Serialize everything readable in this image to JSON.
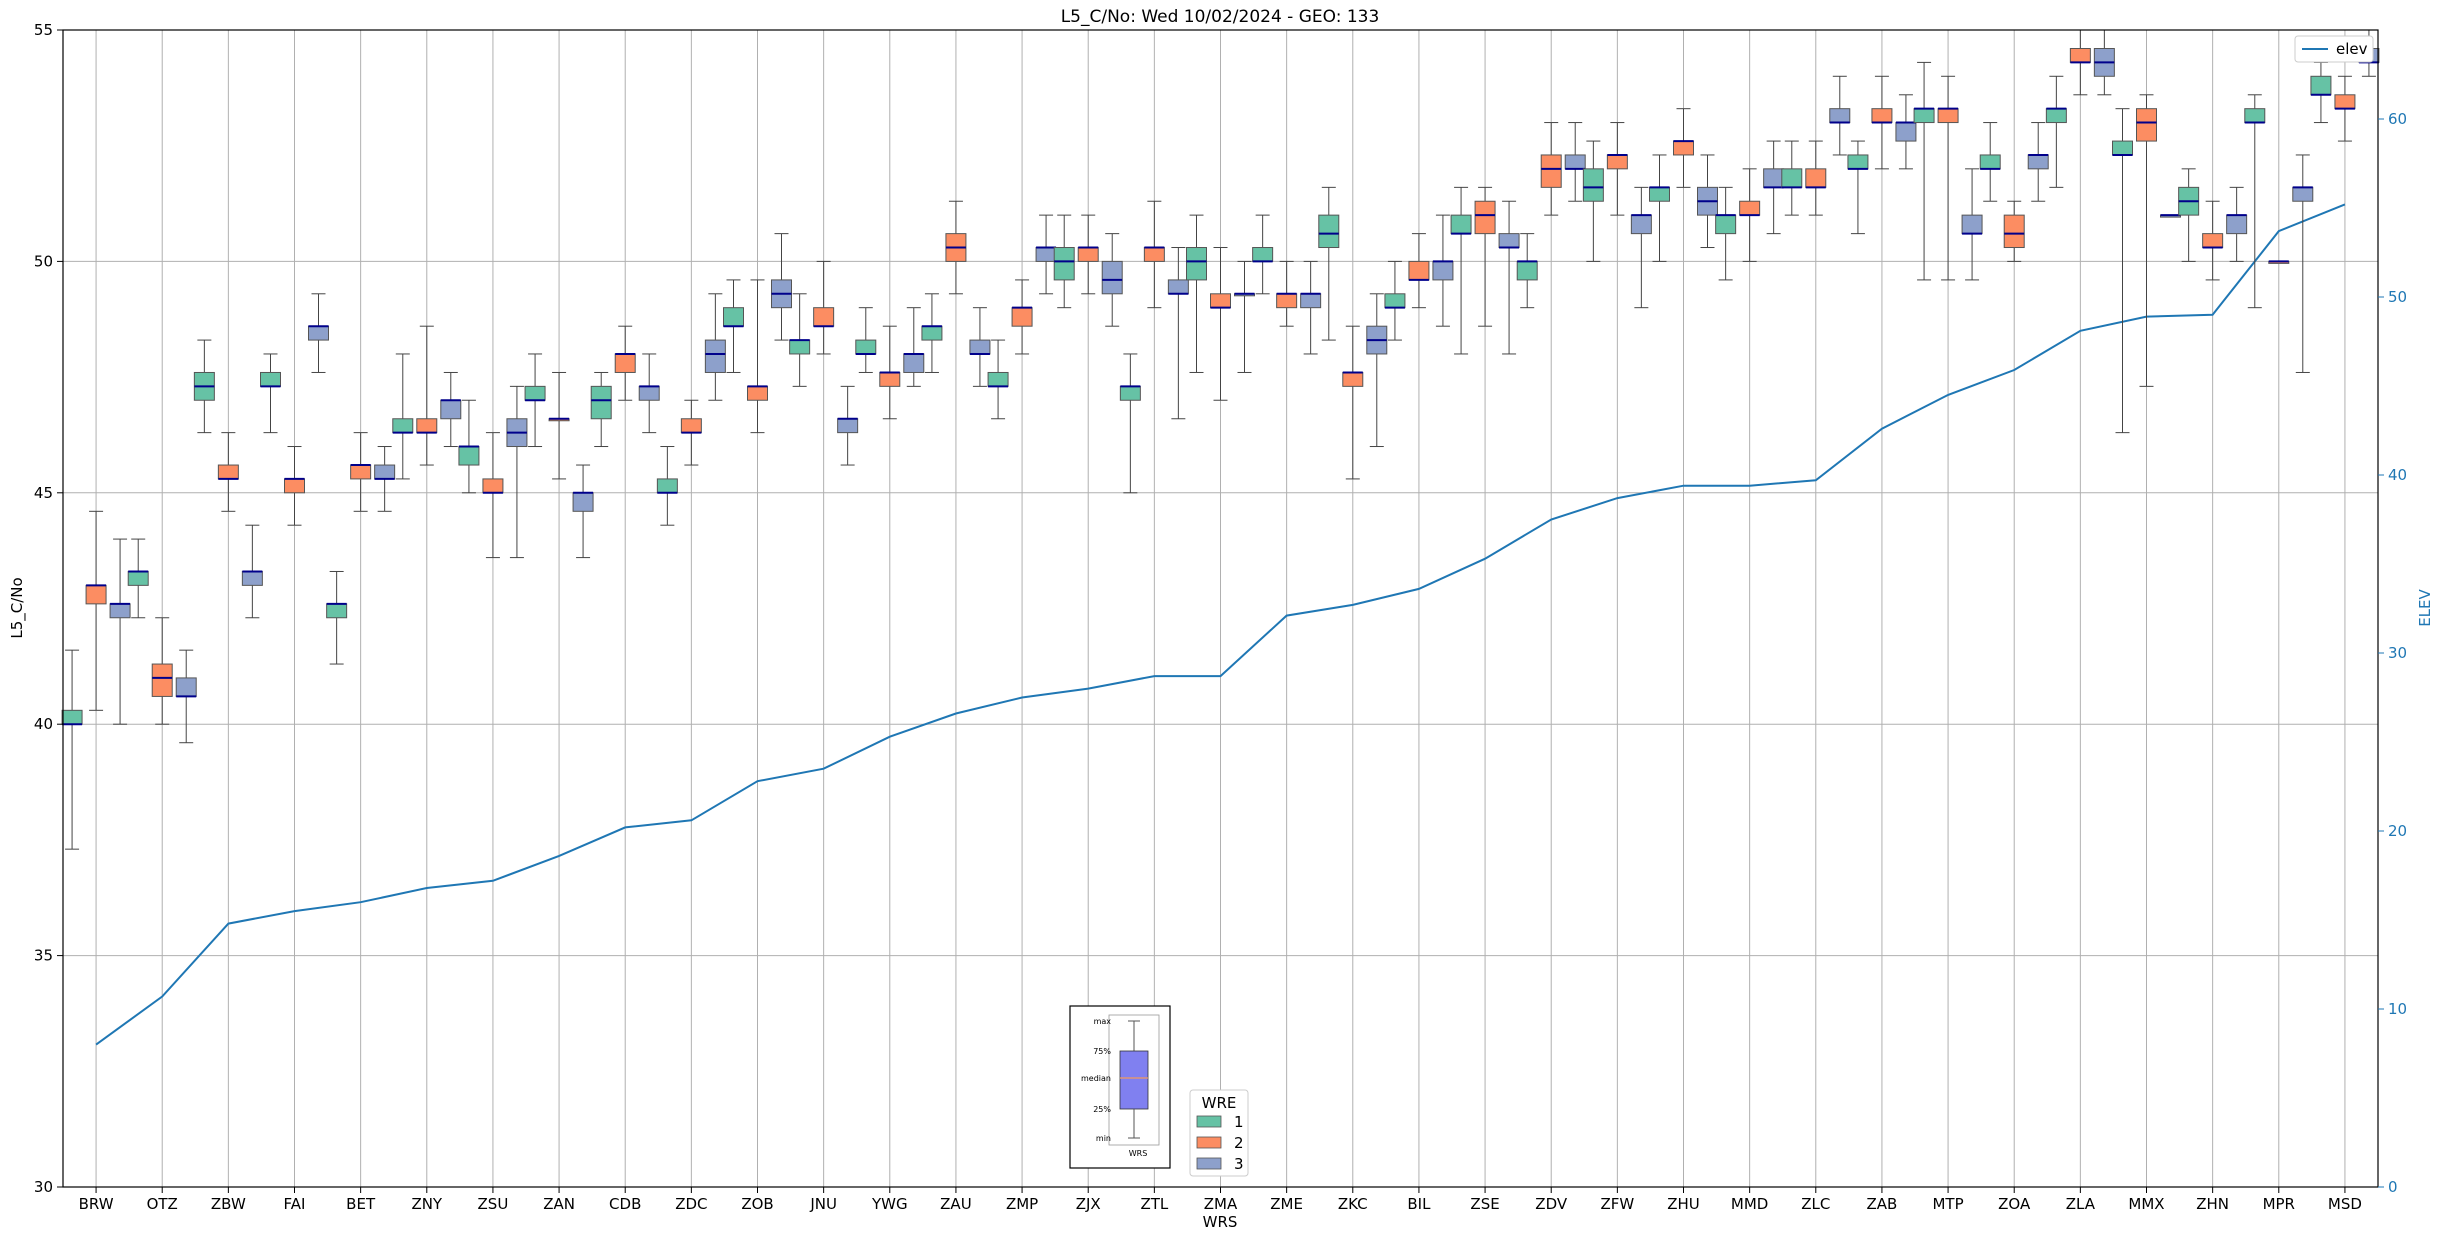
{
  "chart_data": {
    "type": "box",
    "title": "L5_C/No: Wed 10/02/2024 - GEO: 133",
    "xlabel": "WRS",
    "ylabel": "L5_C/No",
    "y2label": "ELEV",
    "ylim": [
      30,
      55
    ],
    "y2lim": [
      0,
      65
    ],
    "yticks": [
      30,
      35,
      40,
      45,
      50,
      55
    ],
    "y2ticks": [
      0,
      10,
      20,
      30,
      40,
      50,
      60
    ],
    "grid": true,
    "categories": [
      "BRW",
      "OTZ",
      "ZBW",
      "FAI",
      "BET",
      "ZNY",
      "ZSU",
      "ZAN",
      "CDB",
      "ZDC",
      "ZOB",
      "JNU",
      "YWG",
      "ZAU",
      "ZMP",
      "ZJX",
      "ZTL",
      "ZMA",
      "ZME",
      "ZKC",
      "BIL",
      "ZSE",
      "ZDV",
      "ZFW",
      "ZHU",
      "MMD",
      "ZLC",
      "ZAB",
      "MTP",
      "ZOA",
      "ZLA",
      "MMX",
      "ZHN",
      "MPR",
      "MSD"
    ],
    "wre_legend": {
      "title": "WRE",
      "entries": [
        {
          "name": "1",
          "color": "#66c2a5"
        },
        {
          "name": "2",
          "color": "#fc8d62"
        },
        {
          "name": "3",
          "color": "#8da0cb"
        }
      ],
      "location": "lower-center"
    },
    "elev_legend": {
      "entries": [
        {
          "name": "elev",
          "color": "#1f77b4"
        }
      ],
      "location": "upper-right"
    },
    "box_key": {
      "labels": [
        "max",
        "75%",
        "median",
        "25%",
        "min"
      ],
      "xlabel": "WRS",
      "location": "lower-center"
    },
    "boxes": [
      [
        {
          "w": 1,
          "min": 37.3,
          "q1": 40.0,
          "med": 40.0,
          "q3": 40.3,
          "max": 41.6
        },
        {
          "w": 2,
          "min": 40.3,
          "q1": 42.6,
          "med": 43.0,
          "q3": 43.0,
          "max": 44.6
        },
        {
          "w": 3,
          "min": 40.0,
          "q1": 42.3,
          "med": 42.6,
          "q3": 42.6,
          "max": 44.0
        }
      ],
      [
        {
          "w": 1,
          "min": 42.3,
          "q1": 43.0,
          "med": 43.3,
          "q3": 43.3,
          "max": 44.0
        },
        {
          "w": 2,
          "min": 40.0,
          "q1": 40.6,
          "med": 41.0,
          "q3": 41.3,
          "max": 42.3
        },
        {
          "w": 3,
          "min": 39.6,
          "q1": 40.6,
          "med": 40.6,
          "q3": 41.0,
          "max": 41.6
        }
      ],
      [
        {
          "w": 1,
          "min": 46.3,
          "q1": 47.0,
          "med": 47.3,
          "q3": 47.6,
          "max": 48.3
        },
        {
          "w": 2,
          "min": 44.6,
          "q1": 45.3,
          "med": 45.3,
          "q3": 45.6,
          "max": 46.3
        },
        {
          "w": 3,
          "min": 42.3,
          "q1": 43.0,
          "med": 43.3,
          "q3": 43.3,
          "max": 44.3
        }
      ],
      [
        {
          "w": 1,
          "min": 46.3,
          "q1": 47.3,
          "med": 47.3,
          "q3": 47.6,
          "max": 48.0
        },
        {
          "w": 2,
          "min": 44.3,
          "q1": 45.0,
          "med": 45.3,
          "q3": 45.3,
          "max": 46.0
        },
        {
          "w": 3,
          "min": 47.6,
          "q1": 48.3,
          "med": 48.6,
          "q3": 48.6,
          "max": 49.3
        }
      ],
      [
        {
          "w": 1,
          "min": 41.3,
          "q1": 42.3,
          "med": 42.6,
          "q3": 42.6,
          "max": 43.3
        },
        {
          "w": 2,
          "min": 44.6,
          "q1": 45.3,
          "med": 45.6,
          "q3": 45.6,
          "max": 46.3
        },
        {
          "w": 3,
          "min": 44.6,
          "q1": 45.3,
          "med": 45.3,
          "q3": 45.6,
          "max": 46.0
        }
      ],
      [
        {
          "w": 1,
          "min": 45.3,
          "q1": 46.3,
          "med": 46.3,
          "q3": 46.6,
          "max": 48.0
        },
        {
          "w": 2,
          "min": 45.6,
          "q1": 46.3,
          "med": 46.3,
          "q3": 46.6,
          "max": 48.6
        },
        {
          "w": 3,
          "min": 46.0,
          "q1": 46.6,
          "med": 47.0,
          "q3": 47.0,
          "max": 47.6
        }
      ],
      [
        {
          "w": 1,
          "min": 45.0,
          "q1": 45.6,
          "med": 46.0,
          "q3": 46.0,
          "max": 47.0
        },
        {
          "w": 2,
          "min": 43.6,
          "q1": 45.0,
          "med": 45.0,
          "q3": 45.3,
          "max": 46.3
        },
        {
          "w": 3,
          "min": 43.6,
          "q1": 46.0,
          "med": 46.3,
          "q3": 46.6,
          "max": 47.3
        }
      ],
      [
        {
          "w": 1,
          "min": 46.0,
          "q1": 47.0,
          "med": 47.0,
          "q3": 47.3,
          "max": 48.0
        },
        {
          "w": 2,
          "min": 45.3,
          "q1": 46.6,
          "med": 46.6,
          "q3": 46.6,
          "max": 47.6
        },
        {
          "w": 3,
          "min": 43.6,
          "q1": 44.6,
          "med": 45.0,
          "q3": 45.0,
          "max": 45.6
        }
      ],
      [
        {
          "w": 1,
          "min": 46.0,
          "q1": 46.6,
          "med": 47.0,
          "q3": 47.3,
          "max": 47.6
        },
        {
          "w": 2,
          "min": 47.0,
          "q1": 47.6,
          "med": 48.0,
          "q3": 48.0,
          "max": 48.6
        },
        {
          "w": 3,
          "min": 46.3,
          "q1": 47.0,
          "med": 47.3,
          "q3": 47.3,
          "max": 48.0
        }
      ],
      [
        {
          "w": 1,
          "min": 44.3,
          "q1": 45.0,
          "med": 45.0,
          "q3": 45.3,
          "max": 46.0
        },
        {
          "w": 2,
          "min": 45.6,
          "q1": 46.3,
          "med": 46.3,
          "q3": 46.6,
          "max": 47.0
        },
        {
          "w": 3,
          "min": 47.0,
          "q1": 47.6,
          "med": 48.0,
          "q3": 48.3,
          "max": 49.3
        }
      ],
      [
        {
          "w": 1,
          "min": 47.6,
          "q1": 48.6,
          "med": 48.6,
          "q3": 49.0,
          "max": 49.6
        },
        {
          "w": 2,
          "min": 46.3,
          "q1": 47.0,
          "med": 47.3,
          "q3": 47.3,
          "max": 49.6
        },
        {
          "w": 3,
          "min": 48.3,
          "q1": 49.0,
          "med": 49.3,
          "q3": 49.6,
          "max": 50.6
        }
      ],
      [
        {
          "w": 1,
          "min": 47.3,
          "q1": 48.0,
          "med": 48.3,
          "q3": 48.3,
          "max": 49.3
        },
        {
          "w": 2,
          "min": 48.0,
          "q1": 48.6,
          "med": 48.6,
          "q3": 49.0,
          "max": 50.0
        },
        {
          "w": 3,
          "min": 45.6,
          "q1": 46.3,
          "med": 46.6,
          "q3": 46.6,
          "max": 47.3
        }
      ],
      [
        {
          "w": 1,
          "min": 47.6,
          "q1": 48.0,
          "med": 48.0,
          "q3": 48.3,
          "max": 49.0
        },
        {
          "w": 2,
          "min": 46.6,
          "q1": 47.3,
          "med": 47.6,
          "q3": 47.6,
          "max": 48.6
        },
        {
          "w": 3,
          "min": 47.3,
          "q1": 47.6,
          "med": 48.0,
          "q3": 48.0,
          "max": 49.0
        }
      ],
      [
        {
          "w": 1,
          "min": 47.6,
          "q1": 48.3,
          "med": 48.6,
          "q3": 48.6,
          "max": 49.3
        },
        {
          "w": 2,
          "min": 49.3,
          "q1": 50.0,
          "med": 50.3,
          "q3": 50.6,
          "max": 51.3
        },
        {
          "w": 3,
          "min": 47.3,
          "q1": 48.0,
          "med": 48.0,
          "q3": 48.3,
          "max": 49.0
        }
      ],
      [
        {
          "w": 1,
          "min": 46.6,
          "q1": 47.3,
          "med": 47.3,
          "q3": 47.6,
          "max": 48.3
        },
        {
          "w": 2,
          "min": 48.0,
          "q1": 48.6,
          "med": 49.0,
          "q3": 49.0,
          "max": 49.6
        },
        {
          "w": 3,
          "min": 49.3,
          "q1": 50.0,
          "med": 50.3,
          "q3": 50.3,
          "max": 51.0
        }
      ],
      [
        {
          "w": 1,
          "min": 49.0,
          "q1": 49.6,
          "med": 50.0,
          "q3": 50.3,
          "max": 51.0
        },
        {
          "w": 2,
          "min": 49.3,
          "q1": 50.0,
          "med": 50.3,
          "q3": 50.3,
          "max": 51.0
        },
        {
          "w": 3,
          "min": 48.6,
          "q1": 49.3,
          "med": 49.6,
          "q3": 50.0,
          "max": 50.6
        }
      ],
      [
        {
          "w": 1,
          "min": 45.0,
          "q1": 47.0,
          "med": 47.3,
          "q3": 47.3,
          "max": 48.0
        },
        {
          "w": 2,
          "min": 49.0,
          "q1": 50.0,
          "med": 50.3,
          "q3": 50.3,
          "max": 51.3
        },
        {
          "w": 3,
          "min": 46.6,
          "q1": 49.3,
          "med": 49.3,
          "q3": 49.6,
          "max": 50.3
        }
      ],
      [
        {
          "w": 1,
          "min": 47.6,
          "q1": 49.6,
          "med": 50.0,
          "q3": 50.3,
          "max": 51.0
        },
        {
          "w": 2,
          "min": 47.0,
          "q1": 49.0,
          "med": 49.0,
          "q3": 49.3,
          "max": 50.3
        },
        {
          "w": 3,
          "min": 47.6,
          "q1": 49.3,
          "med": 49.3,
          "q3": 49.3,
          "max": 50.0
        }
      ],
      [
        {
          "w": 1,
          "min": 49.3,
          "q1": 50.0,
          "med": 50.0,
          "q3": 50.3,
          "max": 51.0
        },
        {
          "w": 2,
          "min": 48.6,
          "q1": 49.0,
          "med": 49.3,
          "q3": 49.3,
          "max": 50.0
        },
        {
          "w": 3,
          "min": 48.0,
          "q1": 49.0,
          "med": 49.3,
          "q3": 49.3,
          "max": 50.0
        }
      ],
      [
        {
          "w": 1,
          "min": 48.3,
          "q1": 50.3,
          "med": 50.6,
          "q3": 51.0,
          "max": 51.6
        },
        {
          "w": 2,
          "min": 45.3,
          "q1": 47.3,
          "med": 47.6,
          "q3": 47.6,
          "max": 48.6
        },
        {
          "w": 3,
          "min": 46.0,
          "q1": 48.0,
          "med": 48.3,
          "q3": 48.6,
          "max": 49.3
        }
      ],
      [
        {
          "w": 1,
          "min": 48.3,
          "q1": 49.0,
          "med": 49.0,
          "q3": 49.3,
          "max": 50.0
        },
        {
          "w": 2,
          "min": 49.0,
          "q1": 49.6,
          "med": 49.6,
          "q3": 50.0,
          "max": 50.6
        },
        {
          "w": 3,
          "min": 48.6,
          "q1": 49.6,
          "med": 50.0,
          "q3": 50.0,
          "max": 51.0
        }
      ],
      [
        {
          "w": 1,
          "min": 48.0,
          "q1": 50.6,
          "med": 50.6,
          "q3": 51.0,
          "max": 51.6
        },
        {
          "w": 2,
          "min": 48.6,
          "q1": 50.6,
          "med": 51.0,
          "q3": 51.3,
          "max": 51.6
        },
        {
          "w": 3,
          "min": 48.0,
          "q1": 50.3,
          "med": 50.3,
          "q3": 50.6,
          "max": 51.3
        }
      ],
      [
        {
          "w": 1,
          "min": 49.0,
          "q1": 49.6,
          "med": 50.0,
          "q3": 50.0,
          "max": 50.6
        },
        {
          "w": 2,
          "min": 51.0,
          "q1": 51.6,
          "med": 52.0,
          "q3": 52.3,
          "max": 53.0
        },
        {
          "w": 3,
          "min": 51.3,
          "q1": 52.0,
          "med": 52.0,
          "q3": 52.3,
          "max": 53.0
        }
      ],
      [
        {
          "w": 1,
          "min": 50.0,
          "q1": 51.3,
          "med": 51.6,
          "q3": 52.0,
          "max": 52.6
        },
        {
          "w": 2,
          "min": 51.0,
          "q1": 52.0,
          "med": 52.3,
          "q3": 52.3,
          "max": 53.0
        },
        {
          "w": 3,
          "min": 49.0,
          "q1": 50.6,
          "med": 51.0,
          "q3": 51.0,
          "max": 51.6
        }
      ],
      [
        {
          "w": 1,
          "min": 50.0,
          "q1": 51.3,
          "med": 51.6,
          "q3": 51.6,
          "max": 52.3
        },
        {
          "w": 2,
          "min": 51.6,
          "q1": 52.3,
          "med": 52.6,
          "q3": 52.6,
          "max": 53.3
        },
        {
          "w": 3,
          "min": 50.3,
          "q1": 51.0,
          "med": 51.3,
          "q3": 51.6,
          "max": 52.3
        }
      ],
      [
        {
          "w": 1,
          "min": 49.6,
          "q1": 50.6,
          "med": 51.0,
          "q3": 51.0,
          "max": 51.6
        },
        {
          "w": 2,
          "min": 50.0,
          "q1": 51.0,
          "med": 51.0,
          "q3": 51.3,
          "max": 52.0
        },
        {
          "w": 3,
          "min": 50.6,
          "q1": 51.6,
          "med": 51.6,
          "q3": 52.0,
          "max": 52.6
        }
      ],
      [
        {
          "w": 1,
          "min": 51.0,
          "q1": 51.6,
          "med": 51.6,
          "q3": 52.0,
          "max": 52.6
        },
        {
          "w": 2,
          "min": 51.0,
          "q1": 51.6,
          "med": 51.6,
          "q3": 52.0,
          "max": 52.6
        },
        {
          "w": 3,
          "min": 52.3,
          "q1": 53.0,
          "med": 53.0,
          "q3": 53.3,
          "max": 54.0
        }
      ],
      [
        {
          "w": 1,
          "min": 50.6,
          "q1": 52.0,
          "med": 52.0,
          "q3": 52.3,
          "max": 52.6
        },
        {
          "w": 2,
          "min": 52.0,
          "q1": 53.0,
          "med": 53.0,
          "q3": 53.3,
          "max": 54.0
        },
        {
          "w": 3,
          "min": 52.0,
          "q1": 52.6,
          "med": 53.0,
          "q3": 53.0,
          "max": 53.6
        }
      ],
      [
        {
          "w": 1,
          "min": 49.6,
          "q1": 53.0,
          "med": 53.3,
          "q3": 53.3,
          "max": 54.3
        },
        {
          "w": 2,
          "min": 49.6,
          "q1": 53.0,
          "med": 53.3,
          "q3": 53.3,
          "max": 54.0
        },
        {
          "w": 3,
          "min": 49.6,
          "q1": 50.6,
          "med": 50.6,
          "q3": 51.0,
          "max": 52.0
        }
      ],
      [
        {
          "w": 1,
          "min": 51.3,
          "q1": 52.0,
          "med": 52.0,
          "q3": 52.3,
          "max": 53.0
        },
        {
          "w": 2,
          "min": 50.0,
          "q1": 50.3,
          "med": 50.6,
          "q3": 51.0,
          "max": 51.3
        },
        {
          "w": 3,
          "min": 51.3,
          "q1": 52.0,
          "med": 52.3,
          "q3": 52.3,
          "max": 53.0
        }
      ],
      [
        {
          "w": 1,
          "min": 51.6,
          "q1": 53.0,
          "med": 53.3,
          "q3": 53.3,
          "max": 54.0
        },
        {
          "w": 2,
          "min": 53.6,
          "q1": 54.3,
          "med": 54.3,
          "q3": 54.6,
          "max": 55.0
        },
        {
          "w": 3,
          "min": 53.6,
          "q1": 54.0,
          "med": 54.3,
          "q3": 54.6,
          "max": 55.0
        }
      ],
      [
        {
          "w": 1,
          "min": 46.3,
          "q1": 52.3,
          "med": 52.3,
          "q3": 52.6,
          "max": 53.3
        },
        {
          "w": 2,
          "min": 47.3,
          "q1": 52.6,
          "med": 53.0,
          "q3": 53.3,
          "max": 53.6
        },
        {
          "w": 3,
          "min": 51.0,
          "q1": 51.0,
          "med": 51.0,
          "q3": 51.0,
          "max": 51.0
        }
      ],
      [
        {
          "w": 1,
          "min": 50.0,
          "q1": 51.0,
          "med": 51.3,
          "q3": 51.6,
          "max": 52.0
        },
        {
          "w": 2,
          "min": 49.6,
          "q1": 50.3,
          "med": 50.3,
          "q3": 50.6,
          "max": 51.3
        },
        {
          "w": 3,
          "min": 50.0,
          "q1": 50.6,
          "med": 51.0,
          "q3": 51.0,
          "max": 51.6
        }
      ],
      [
        {
          "w": 1,
          "min": 49.0,
          "q1": 53.0,
          "med": 53.0,
          "q3": 53.3,
          "max": 53.6
        },
        {
          "w": 2,
          "min": 50.0,
          "q1": 50.0,
          "med": 50.0,
          "q3": 50.0,
          "max": 50.0
        },
        {
          "w": 3,
          "min": 47.6,
          "q1": 51.3,
          "med": 51.6,
          "q3": 51.6,
          "max": 52.3
        }
      ],
      [
        {
          "w": 1,
          "min": 53.0,
          "q1": 53.6,
          "med": 53.6,
          "q3": 54.0,
          "max": 54.3
        },
        {
          "w": 2,
          "min": 52.6,
          "q1": 53.3,
          "med": 53.3,
          "q3": 53.6,
          "max": 54.0
        },
        {
          "w": 3,
          "min": 54.0,
          "q1": 54.3,
          "med": 54.3,
          "q3": 54.6,
          "max": 55.0
        }
      ]
    ],
    "series": [
      {
        "name": "elev",
        "axis": "right",
        "color": "#1f77b4",
        "values": [
          8.0,
          10.7,
          14.8,
          15.5,
          16.0,
          16.8,
          17.2,
          18.6,
          20.2,
          20.6,
          22.8,
          23.5,
          25.3,
          26.6,
          27.5,
          28.0,
          28.7,
          28.7,
          32.1,
          32.7,
          33.6,
          35.3,
          37.5,
          38.7,
          39.4,
          39.4,
          39.7,
          42.6,
          44.5,
          45.9,
          48.1,
          48.9,
          49.0,
          53.7,
          55.2
        ]
      }
    ]
  }
}
